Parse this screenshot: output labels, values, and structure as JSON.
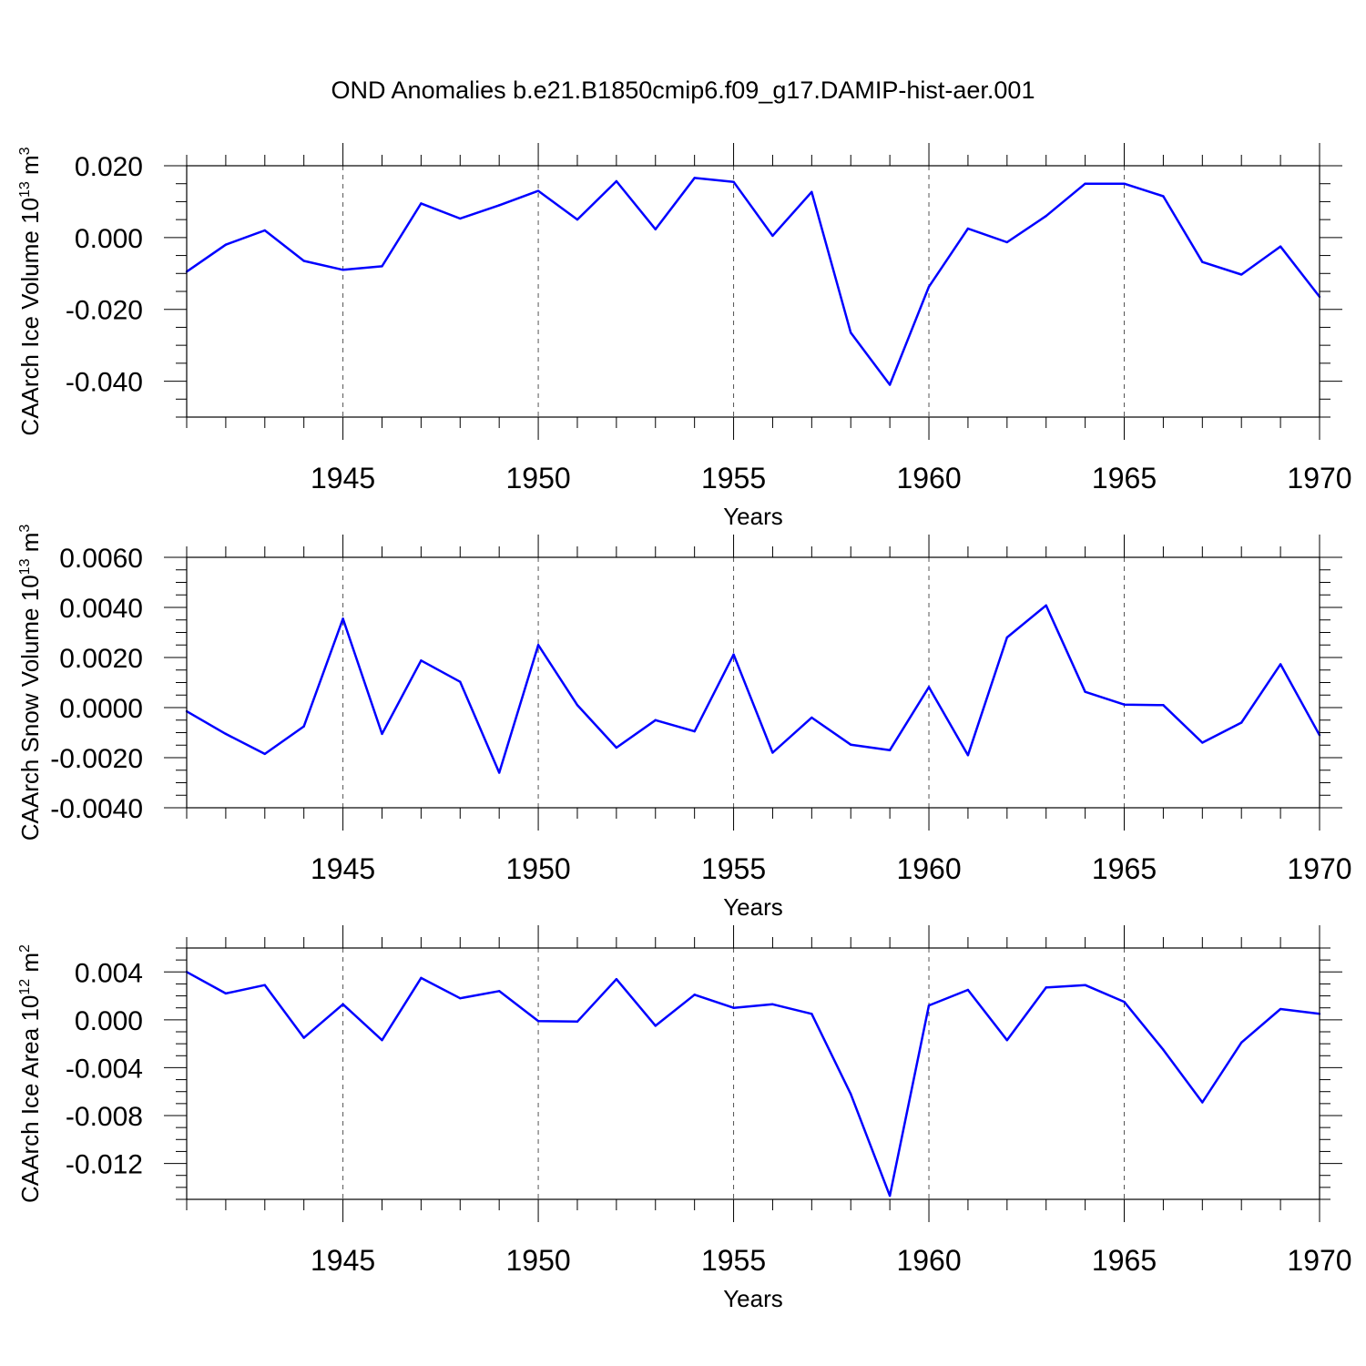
{
  "title": "OND Anomalies b.e21.B1850cmip6.f09_g17.DAMIP-hist-aer.001",
  "line_color": "#0000ff",
  "chart_data": [
    {
      "type": "line",
      "ylabel_main": "CAArch Ice Volume 10",
      "ylabel_exp": "13",
      "ylabel_unit": " m",
      "ylabel_unit_exp": "3",
      "xlabel": "Years",
      "xlim": [
        1941,
        1970
      ],
      "ylim": [
        -0.05,
        0.02
      ],
      "yticks": [
        -0.04,
        -0.02,
        0.0,
        0.02
      ],
      "ytick_labels": [
        "-0.040",
        "-0.020",
        "0.000",
        "0.020"
      ],
      "yminor_step": 0.005,
      "xticks": [
        1945,
        1950,
        1955,
        1960,
        1965,
        1970
      ],
      "xtick_labels": [
        "1945",
        "1950",
        "1955",
        "1960",
        "1965",
        "1970"
      ],
      "x": [
        1941,
        1942,
        1943,
        1944,
        1945,
        1946,
        1947,
        1948,
        1949,
        1950,
        1951,
        1952,
        1953,
        1954,
        1955,
        1956,
        1957,
        1958,
        1959,
        1960,
        1961,
        1962,
        1963,
        1964,
        1965,
        1966,
        1967,
        1968,
        1969,
        1970
      ],
      "values": [
        -0.0095,
        -0.002,
        0.002,
        -0.0065,
        -0.009,
        -0.008,
        0.0095,
        0.0053,
        0.009,
        0.013,
        0.005,
        0.0157,
        0.0023,
        0.0166,
        0.0155,
        0.0005,
        0.0127,
        -0.0265,
        -0.041,
        -0.0137,
        0.0025,
        -0.0013,
        0.006,
        0.015,
        0.015,
        0.0115,
        -0.0068,
        -0.0103,
        -0.0025,
        -0.0165
      ]
    },
    {
      "type": "line",
      "ylabel_main": "CAArch Snow Volume 10",
      "ylabel_exp": "13",
      "ylabel_unit": " m",
      "ylabel_unit_exp": "3",
      "xlabel": "Years",
      "xlim": [
        1941,
        1970
      ],
      "ylim": [
        -0.004,
        0.006
      ],
      "yticks": [
        -0.004,
        -0.002,
        0.0,
        0.002,
        0.004,
        0.006
      ],
      "ytick_labels": [
        "-0.0040",
        "-0.0020",
        "0.0000",
        "0.0020",
        "0.0040",
        "0.0060"
      ],
      "yminor_step": 0.0005,
      "xticks": [
        1945,
        1950,
        1955,
        1960,
        1965,
        1970
      ],
      "xtick_labels": [
        "1945",
        "1950",
        "1955",
        "1960",
        "1965",
        "1970"
      ],
      "x": [
        1941,
        1942,
        1943,
        1944,
        1945,
        1946,
        1947,
        1948,
        1949,
        1950,
        1951,
        1952,
        1953,
        1954,
        1955,
        1956,
        1957,
        1958,
        1959,
        1960,
        1961,
        1962,
        1963,
        1964,
        1965,
        1966,
        1967,
        1968,
        1969,
        1970
      ],
      "values": [
        -0.00015,
        -0.00105,
        -0.00185,
        -0.00075,
        0.00355,
        -0.00105,
        0.00188,
        0.00103,
        -0.0026,
        0.0025,
        0.0001,
        -0.0016,
        -0.0005,
        -0.00095,
        0.00212,
        -0.0018,
        -0.0004,
        -0.00148,
        -0.0017,
        0.00082,
        -0.0019,
        0.0028,
        0.00408,
        0.00063,
        0.00012,
        0.0001,
        -0.0014,
        -0.0006,
        0.00173,
        -0.0011
      ]
    },
    {
      "type": "line",
      "ylabel_main": "CAArch Ice Area 10",
      "ylabel_exp": "12",
      "ylabel_unit": " m",
      "ylabel_unit_exp": "2",
      "xlabel": "Years",
      "xlim": [
        1941,
        1970
      ],
      "ylim": [
        -0.015,
        0.006
      ],
      "yticks": [
        -0.012,
        -0.008,
        -0.004,
        0.0,
        0.004
      ],
      "ytick_labels": [
        "-0.012",
        "-0.008",
        "-0.004",
        "0.000",
        "0.004"
      ],
      "yminor_step": 0.001,
      "xticks": [
        1945,
        1950,
        1955,
        1960,
        1965,
        1970
      ],
      "xtick_labels": [
        "1945",
        "1950",
        "1955",
        "1960",
        "1965",
        "1970"
      ],
      "x": [
        1941,
        1942,
        1943,
        1944,
        1945,
        1946,
        1947,
        1948,
        1949,
        1950,
        1951,
        1952,
        1953,
        1954,
        1955,
        1956,
        1957,
        1958,
        1959,
        1960,
        1961,
        1962,
        1963,
        1964,
        1965,
        1966,
        1967,
        1968,
        1969,
        1970
      ],
      "values": [
        0.004,
        0.0022,
        0.0029,
        -0.0015,
        0.0013,
        -0.0017,
        0.0035,
        0.0018,
        0.0024,
        -0.0001,
        -0.00015,
        0.0034,
        -0.0005,
        0.0021,
        0.001,
        0.0013,
        0.0005,
        -0.0062,
        -0.0147,
        0.0012,
        0.0025,
        -0.0017,
        0.0027,
        0.0029,
        0.0015,
        -0.0025,
        -0.0069,
        -0.0019,
        0.0009,
        0.0005
      ]
    }
  ]
}
